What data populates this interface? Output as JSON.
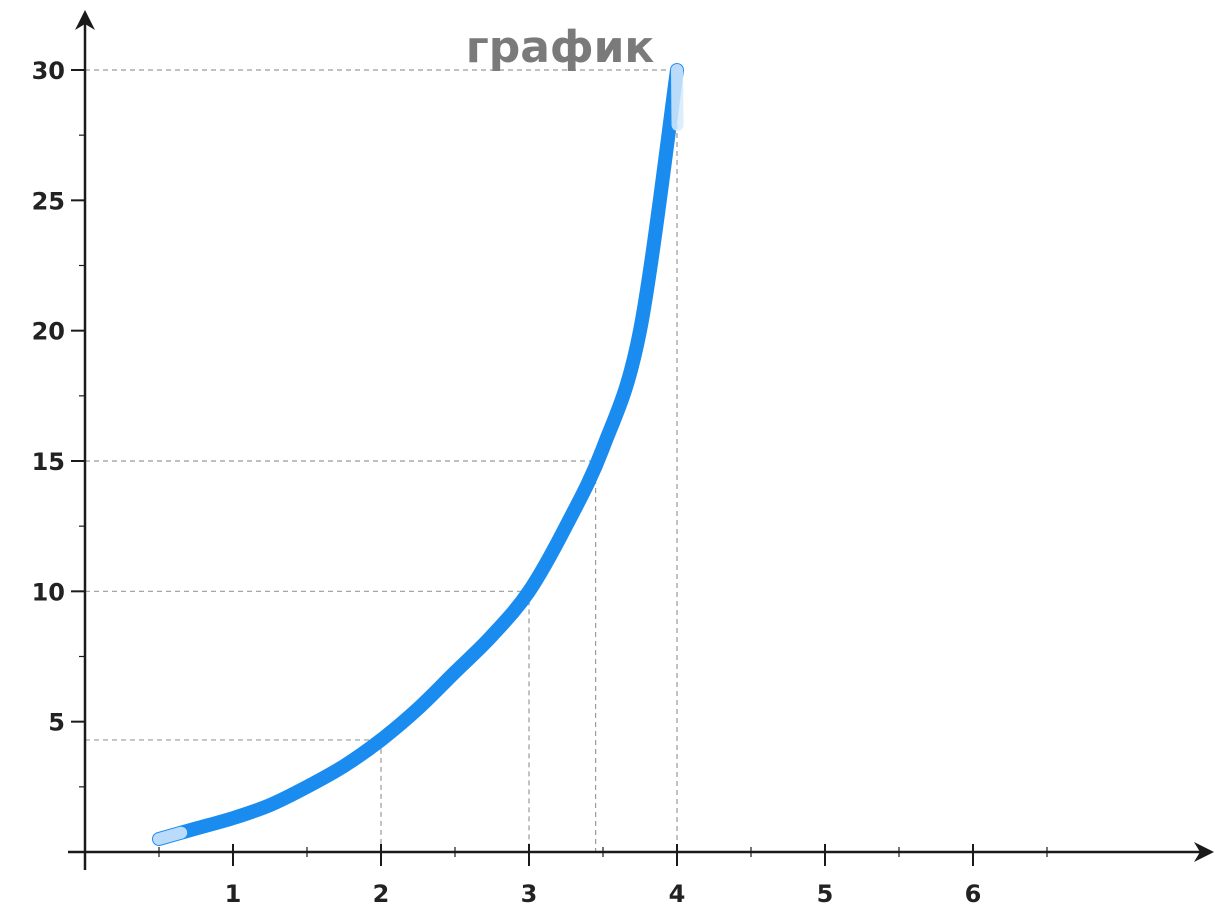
{
  "title": "график",
  "chart_data": {
    "type": "line",
    "title": "график",
    "xlabel": "",
    "ylabel": "",
    "xlim": [
      -0.9,
      7.9
    ],
    "ylim": [
      0,
      30
    ],
    "x_ticks": [
      1,
      2,
      3,
      4,
      5,
      6
    ],
    "x_tick_labels": [
      "1",
      "2",
      "3",
      "4",
      "5",
      "6"
    ],
    "y_ticks": [
      5,
      10,
      15,
      20,
      25,
      30
    ],
    "y_tick_labels": [
      "5",
      "10",
      "15",
      "20",
      "25",
      "30"
    ],
    "series": [
      {
        "x": [
          0.5,
          0.75,
          1,
          1.25,
          1.5,
          1.75,
          2,
          2.25,
          2.5,
          2.75,
          3,
          3.25,
          3.5,
          3.75,
          4
        ],
        "y": [
          0.5,
          0.9,
          1.3,
          1.8,
          2.5,
          3.3,
          4.3,
          5.5,
          6.9,
          8.3,
          10.0,
          12.5,
          15.5,
          20.0,
          30.0
        ],
        "color": "#1a8cf0"
      }
    ],
    "guides": [
      {
        "x": 2,
        "y": 4.3
      },
      {
        "x": 3,
        "y": 10
      },
      {
        "x": 3.45,
        "y": 15
      },
      {
        "x": 4,
        "y": 30
      }
    ],
    "grid": false,
    "legend": "none"
  }
}
